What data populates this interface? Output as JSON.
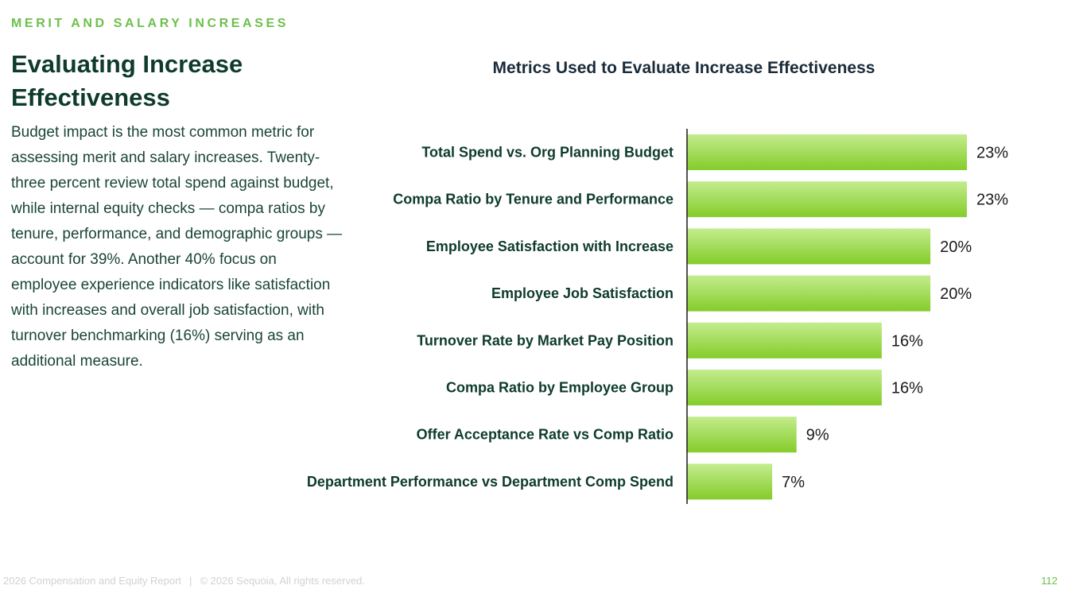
{
  "header": {
    "kicker": "MERIT AND SALARY INCREASES",
    "title": "Evaluating Increase Effectiveness",
    "body": "Budget impact is the most common metric for assessing merit and salary increases. Twenty-three percent review total spend against budget, while internal equity checks — compa ratios by tenure, performance, and demographic groups — account for 39%. Another 40% focus on employee experience indicators like satisfaction with increases and overall job satisfaction, with turnover benchmarking (16%) serving as an additional measure."
  },
  "chart_data": {
    "type": "bar",
    "orientation": "horizontal",
    "title": "Metrics Used to Evaluate Increase Effectiveness",
    "categories": [
      "Total Spend vs. Org Planning Budget",
      "Compa Ratio by Tenure and Performance",
      "Employee Satisfaction with Increase",
      "Employee Job Satisfaction",
      "Turnover Rate by Market Pay Position",
      "Compa Ratio by Employee Group",
      "Offer Acceptance Rate vs Comp Ratio",
      "Department Performance vs Department Comp Spend"
    ],
    "values": [
      23,
      23,
      20,
      20,
      16,
      16,
      9,
      7
    ],
    "value_suffix": "%",
    "xlim": [
      0,
      23
    ],
    "xlabel": "",
    "ylabel": "",
    "grid": false,
    "colors": {
      "bar_top": "#c4ec8e",
      "bar_bottom": "#84cc2a",
      "axis": "#1a1a1a",
      "label": "#0e3b2e",
      "value": "#1a1a1a"
    }
  },
  "footer": {
    "report": "2026 Compensation and Equity Report",
    "separator": "|",
    "copyright": "© 2026 Sequoia,  All rights reserved.",
    "page": "112"
  }
}
